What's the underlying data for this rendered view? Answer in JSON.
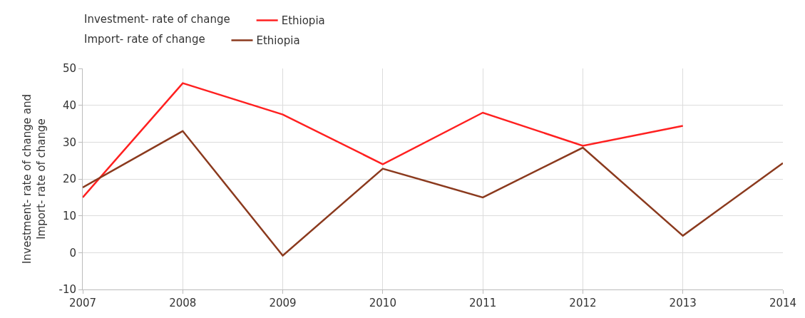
{
  "chart_data": {
    "type": "line",
    "legend_title": [
      "Investment- rate of change",
      "Import- rate of change"
    ],
    "ylabel": "Investment- rate of change and Import- rate of change",
    "x": [
      2007,
      2008,
      2009,
      2010,
      2011,
      2012,
      2013,
      2014
    ],
    "series": [
      {
        "name": "Ethiopia",
        "color": "#ff2020",
        "values": [
          15,
          46,
          37.5,
          24,
          38,
          29,
          34.4,
          null
        ]
      },
      {
        "name": "Ethiopia",
        "color": "#8b3a1e",
        "values": [
          17.7,
          33,
          -0.8,
          22.8,
          15,
          28.5,
          4.6,
          24.3
        ]
      }
    ],
    "xlim": [
      2007,
      2014
    ],
    "xticks": [
      2007,
      2008,
      2009,
      2010,
      2011,
      2012,
      2013,
      2014
    ],
    "ylim": [
      -10,
      50
    ],
    "yticks": [
      -10,
      0,
      10,
      20,
      30,
      40,
      50
    ],
    "grid": true,
    "legend": "top left",
    "marker": "none",
    "line_style": "solid"
  }
}
